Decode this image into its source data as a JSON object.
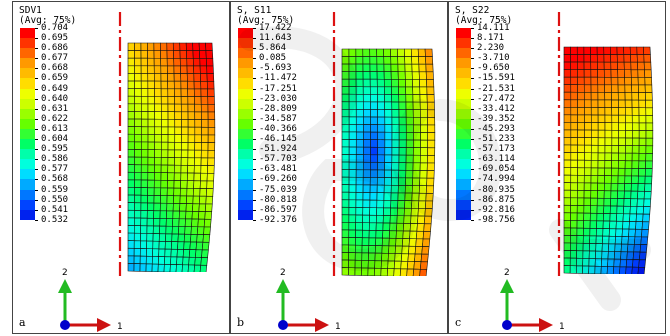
{
  "panels": [
    {
      "id": "a",
      "label": "a",
      "var": "SDV1",
      "avg": "(Avg: 75%)",
      "values": [
        "0.704",
        "0.695",
        "0.686",
        "0.677",
        "0.668",
        "0.659",
        "0.649",
        "0.640",
        "0.631",
        "0.622",
        "0.613",
        "0.604",
        "0.595",
        "0.586",
        "0.577",
        "0.568",
        "0.559",
        "0.550",
        "0.541",
        "0.532"
      ],
      "axis_y": "2",
      "axis_x": "1"
    },
    {
      "id": "b",
      "label": "b",
      "var": "S, S11",
      "avg": "(Avg: 75%)",
      "values": [
        "17.422",
        "11.643",
        "5.864",
        "0.085",
        "-5.693",
        "-11.472",
        "-17.251",
        "-23.030",
        "-28.809",
        "-34.587",
        "-40.366",
        "-46.145",
        "-51.924",
        "-57.703",
        "-63.481",
        "-69.260",
        "-75.039",
        "-80.818",
        "-86.597",
        "-92.376"
      ],
      "axis_y": "2",
      "axis_x": "1"
    },
    {
      "id": "c",
      "label": "c",
      "var": "S, S22",
      "avg": "(Avg: 75%)",
      "values": [
        "14.111",
        "8.171",
        "2.230",
        "-3.710",
        "-9.650",
        "-15.591",
        "-21.531",
        "-27.472",
        "-33.412",
        "-39.352",
        "-45.293",
        "-51.233",
        "-57.173",
        "-63.114",
        "-69.054",
        "-74.994",
        "-80.935",
        "-86.875",
        "-92.816",
        "-98.756"
      ],
      "axis_y": "2",
      "axis_x": "1"
    }
  ],
  "colors": {
    "legend_scale": [
      "#ff0000",
      "#ff3300",
      "#ff6600",
      "#ff9900",
      "#ffbb00",
      "#ffdd00",
      "#eeff00",
      "#ccff00",
      "#99ff00",
      "#66ff00",
      "#33ff33",
      "#00ff66",
      "#00ffaa",
      "#00ffdd",
      "#00ddff",
      "#00aaff",
      "#0077ff",
      "#0044ff",
      "#0022ee",
      "#0000cc"
    ],
    "axis_arrow_y": "#22bb22",
    "axis_arrow_x": "#cc1111",
    "axis_origin": "#0000cc",
    "symmetry_line": "#dd1111"
  }
}
